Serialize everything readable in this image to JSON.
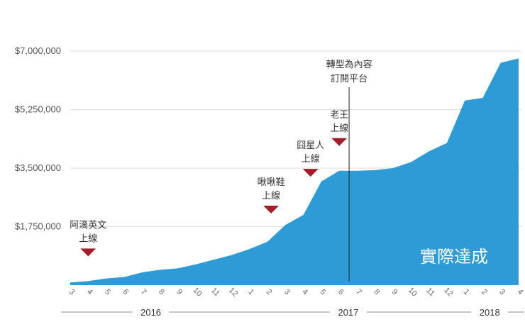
{
  "chart_data": {
    "type": "area",
    "color": "#2f9bd6",
    "marker_color": "#a31d2b",
    "y_ticks": [
      {
        "value": 1750000,
        "label": "$1,750,000"
      },
      {
        "value": 3500000,
        "label": "$3,500,000"
      },
      {
        "value": 5250000,
        "label": "$5,250,000"
      },
      {
        "value": 7000000,
        "label": "$7,000,000"
      }
    ],
    "ylim": [
      0,
      7000000
    ],
    "grid": true,
    "x": [
      "3",
      "4",
      "5",
      "6",
      "7",
      "8",
      "9",
      "10",
      "11",
      "12",
      "1",
      "2",
      "3",
      "4",
      "5",
      "6",
      "7",
      "8",
      "9",
      "10",
      "11",
      "12",
      "1",
      "2",
      "3",
      "4"
    ],
    "years": [
      {
        "label": "2016",
        "from": 0,
        "to": 9
      },
      {
        "label": "2017",
        "from": 10,
        "to": 21
      },
      {
        "label": "2018",
        "from": 22,
        "to": 25
      }
    ],
    "series": [
      {
        "name": "實際達成",
        "values": [
          80000,
          120000,
          200000,
          240000,
          380000,
          460000,
          500000,
          620000,
          760000,
          900000,
          1080000,
          1300000,
          1800000,
          2100000,
          3100000,
          3420000,
          3420000,
          3440000,
          3500000,
          3680000,
          4000000,
          4250000,
          5520000,
          5600000,
          6650000,
          6780000
        ]
      }
    ],
    "annotations": [
      {
        "lines": [
          "阿滴英文",
          "上線"
        ],
        "x_index": 1,
        "type": "marker"
      },
      {
        "lines": [
          "啾啾鞋",
          "上線"
        ],
        "x_index": 11.2,
        "type": "marker"
      },
      {
        "lines": [
          "囧星人",
          "上線"
        ],
        "x_index": 13.4,
        "type": "marker"
      },
      {
        "lines": [
          "老王",
          "上線"
        ],
        "x_index": 15,
        "type": "marker"
      },
      {
        "lines": [
          "轉型為內容",
          "訂閱平台"
        ],
        "x_index": 15.55,
        "type": "vline"
      }
    ]
  }
}
